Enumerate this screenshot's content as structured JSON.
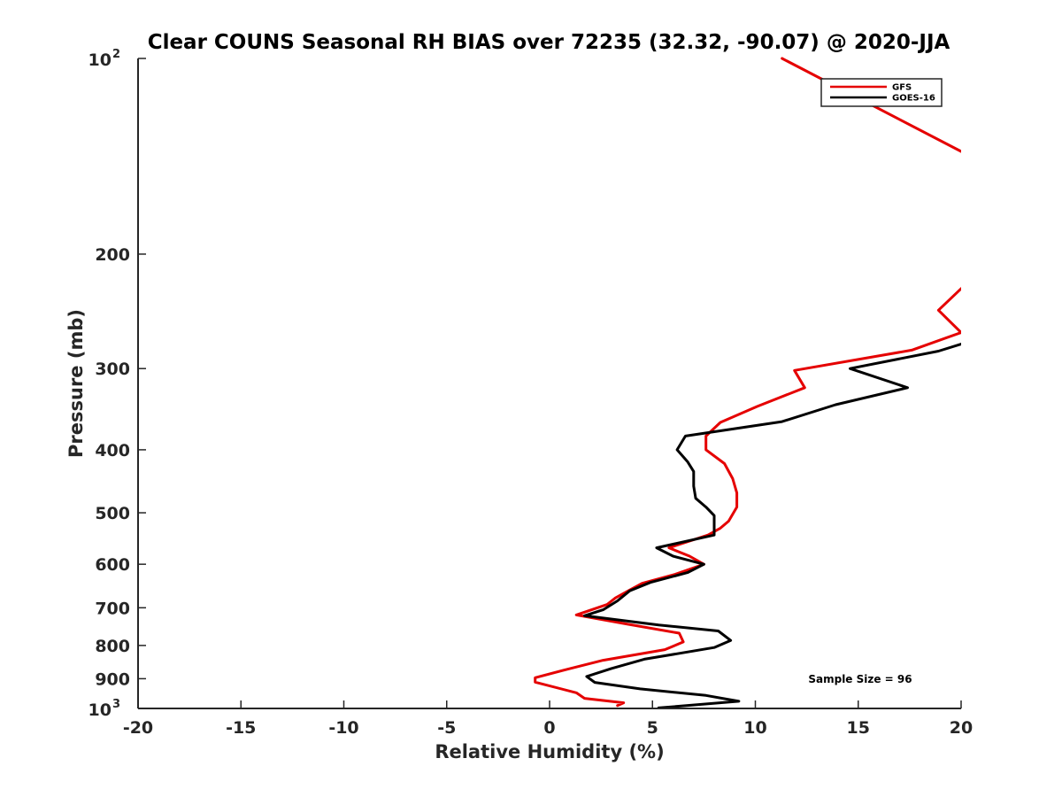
{
  "chart_data": {
    "type": "line",
    "title": "Clear COUNS Seasonal RH BIAS over 72235 (32.32, -90.07) @ 2020-JJA",
    "xlabel": "Relative Humidity (%)",
    "ylabel": "Pressure (mb)",
    "xlim": [
      -20,
      20
    ],
    "ylim": [
      100,
      1000
    ],
    "yscale": "log",
    "y_reversed": true,
    "grid": false,
    "legend_position": "top-right",
    "x_ticks": [
      {
        "value": -20,
        "label": "-20"
      },
      {
        "value": -15,
        "label": "-15"
      },
      {
        "value": -10,
        "label": "-10"
      },
      {
        "value": -5,
        "label": "-5"
      },
      {
        "value": 0,
        "label": "0"
      },
      {
        "value": 5,
        "label": "5"
      },
      {
        "value": 10,
        "label": "10"
      },
      {
        "value": 15,
        "label": "15"
      },
      {
        "value": 20,
        "label": "20"
      }
    ],
    "y_ticks": [
      {
        "value": 100,
        "label": "10",
        "sup": "2"
      },
      {
        "value": 200,
        "label": "200"
      },
      {
        "value": 300,
        "label": "300"
      },
      {
        "value": 400,
        "label": "400"
      },
      {
        "value": 500,
        "label": "500"
      },
      {
        "value": 600,
        "label": "600"
      },
      {
        "value": 700,
        "label": "700"
      },
      {
        "value": 800,
        "label": "800"
      },
      {
        "value": 900,
        "label": "900"
      },
      {
        "value": 1000,
        "label": "10",
        "sup": "3"
      }
    ],
    "annotation": "Sample Size = 96",
    "series": [
      {
        "name": "GFS",
        "color": "#e50000",
        "segments": [
          [
            [
              11.3,
              100
            ],
            [
              20.0,
              139
            ]
          ],
          [
            [
              20.0,
              226
            ],
            [
              18.9,
              244
            ],
            [
              20.0,
              264
            ],
            [
              17.6,
              281
            ],
            [
              11.9,
              302
            ],
            [
              12.4,
              321
            ],
            [
              10.1,
              343
            ],
            [
              8.3,
              363
            ],
            [
              7.6,
              381
            ],
            [
              7.6,
              400
            ],
            [
              8.5,
              420
            ],
            [
              8.9,
              443
            ],
            [
              9.1,
              466
            ],
            [
              9.1,
              490
            ],
            [
              8.7,
              515
            ],
            [
              8.3,
              528
            ],
            [
              7.7,
              541
            ],
            [
              5.8,
              566
            ],
            [
              6.8,
              583
            ],
            [
              7.5,
              600
            ],
            [
              6.1,
              622
            ],
            [
              4.5,
              642
            ],
            [
              3.8,
              660
            ],
            [
              3.2,
              676
            ],
            [
              2.8,
              692
            ],
            [
              1.3,
              718
            ],
            [
              3.8,
              742
            ],
            [
              6.3,
              766
            ],
            [
              6.5,
              790
            ],
            [
              5.6,
              812
            ],
            [
              2.6,
              843
            ],
            [
              1.0,
              868
            ],
            [
              -0.7,
              897
            ],
            [
              -0.7,
              911
            ],
            [
              1.3,
              946
            ],
            [
              1.7,
              965
            ],
            [
              3.6,
              980
            ],
            [
              3.3,
              990
            ]
          ]
        ]
      },
      {
        "name": "GOES-16",
        "color": "#000000",
        "segments": [
          [
            [
              20.0,
              275
            ],
            [
              18.9,
              282
            ],
            [
              14.6,
              300
            ],
            [
              17.4,
              321
            ],
            [
              13.9,
              341
            ],
            [
              11.3,
              362
            ],
            [
              6.6,
              381
            ],
            [
              6.2,
              400
            ],
            [
              6.7,
              417
            ],
            [
              7.0,
              432
            ],
            [
              7.0,
              455
            ],
            [
              7.1,
              475
            ],
            [
              7.6,
              490
            ],
            [
              8.0,
              505
            ],
            [
              8.0,
              541
            ],
            [
              5.2,
              566
            ],
            [
              6.0,
              583
            ],
            [
              7.5,
              600
            ],
            [
              6.7,
              618
            ],
            [
              4.9,
              640
            ],
            [
              3.9,
              659
            ],
            [
              3.3,
              683
            ],
            [
              2.6,
              705
            ],
            [
              1.7,
              720
            ],
            [
              5.3,
              744
            ],
            [
              8.2,
              760
            ],
            [
              8.8,
              786
            ],
            [
              8.0,
              806
            ],
            [
              4.6,
              840
            ],
            [
              3.0,
              868
            ],
            [
              1.8,
              893
            ],
            [
              2.2,
              912
            ],
            [
              4.4,
              933
            ],
            [
              7.6,
              955
            ],
            [
              9.2,
              975
            ],
            [
              5.3,
              998
            ]
          ]
        ]
      }
    ]
  }
}
